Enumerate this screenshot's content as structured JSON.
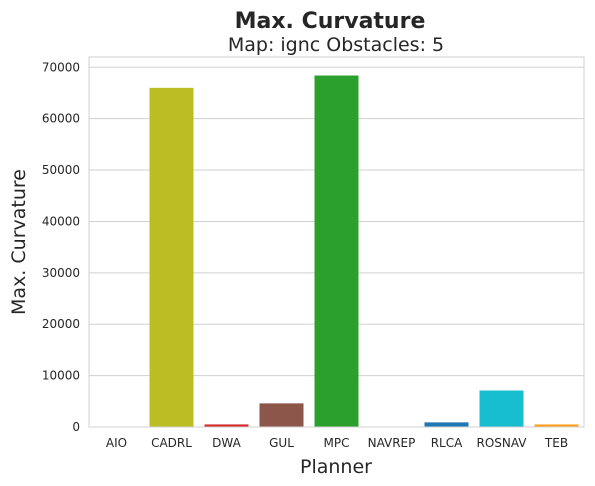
{
  "chart_data": {
    "type": "bar",
    "title": "Max. Curvature",
    "subtitle": "Map: ignc Obstacles: 5",
    "xlabel": "Planner",
    "ylabel": "Max. Curvature",
    "categories": [
      "AIO",
      "CADRL",
      "DWA",
      "GUL",
      "MPC",
      "NAVREP",
      "RLCA",
      "ROSNAV",
      "TEB"
    ],
    "values": [
      0,
      66000,
      500,
      4600,
      68400,
      0,
      900,
      7100,
      500
    ],
    "colors": [
      "#8c8c8c",
      "#bcbd22",
      "#d62728",
      "#8c564b",
      "#2ca02c",
      "#7f7f7f",
      "#1f77b4",
      "#17becf",
      "#ff9f1c"
    ],
    "ylim": [
      0,
      72000
    ],
    "yticks": [
      0,
      10000,
      20000,
      30000,
      40000,
      50000,
      60000,
      70000
    ],
    "grid": true,
    "legend": "none"
  }
}
